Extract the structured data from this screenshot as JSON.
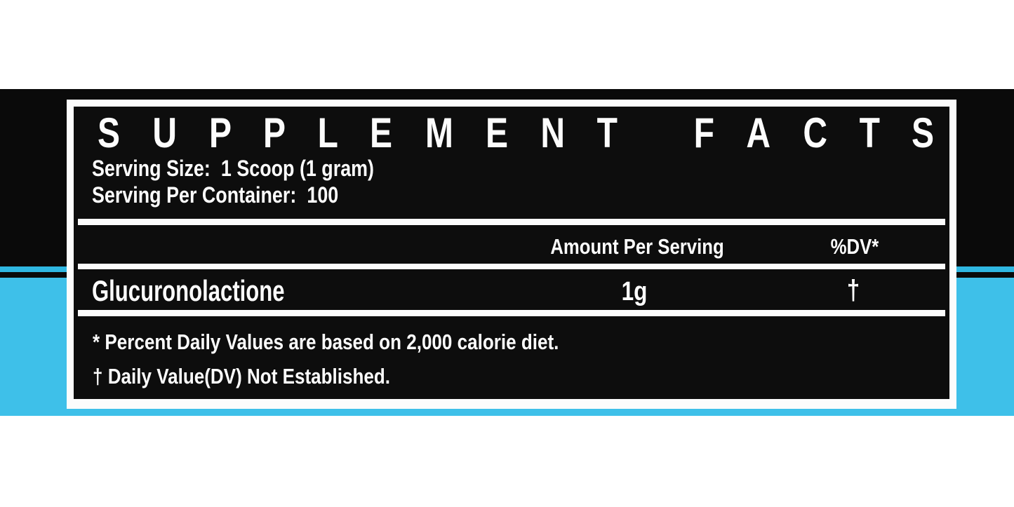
{
  "colors": {
    "accent_cyan": "#3EC0E9",
    "pinstripe_cyan": "#2FB7E2",
    "background_black": "#0A0A0A",
    "panel_black": "#0D0D0D",
    "frame_white": "#FCFCFC"
  },
  "panel": {
    "title": "SUPPLEMENT FACTS",
    "serving_size": {
      "label": "Serving Size:",
      "value": "1 Scoop (1 gram)"
    },
    "servings_per_container": {
      "label": "Serving Per Container:",
      "value": "100"
    },
    "table": {
      "headers": {
        "amount": "Amount Per Serving",
        "dv": "%DV*"
      },
      "rows": [
        {
          "name": "Glucuronolactione",
          "amount": "1g",
          "dv": "†"
        }
      ]
    },
    "footnotes": [
      "* Percent Daily Values are based on 2,000 calorie diet.",
      "† Daily Value(DV) Not Established."
    ]
  }
}
